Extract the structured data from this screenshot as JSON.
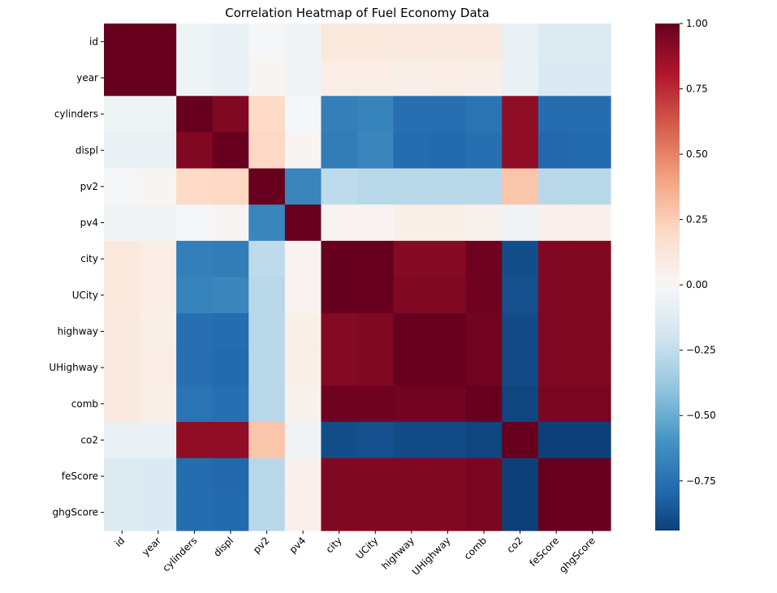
{
  "chart_data": {
    "type": "heatmap",
    "title": "Correlation Heatmap of Fuel Economy Data",
    "x_labels": [
      "id",
      "year",
      "cylinders",
      "displ",
      "pv2",
      "pv4",
      "city",
      "UCity",
      "highway",
      "UHighway",
      "comb",
      "co2",
      "feScore",
      "ghgScore"
    ],
    "y_labels": [
      "id",
      "year",
      "cylinders",
      "displ",
      "pv2",
      "pv4",
      "city",
      "UCity",
      "highway",
      "UHighway",
      "comb",
      "co2",
      "feScore",
      "ghgScore"
    ],
    "values": [
      [
        1.0,
        1.0,
        -0.05,
        -0.07,
        -0.01,
        -0.03,
        0.11,
        0.11,
        0.1,
        0.1,
        0.1,
        -0.08,
        -0.14,
        -0.14
      ],
      [
        1.0,
        1.0,
        -0.05,
        -0.07,
        0.02,
        -0.04,
        0.07,
        0.07,
        0.06,
        0.07,
        0.06,
        -0.07,
        -0.15,
        -0.15
      ],
      [
        -0.05,
        -0.05,
        1.0,
        0.93,
        0.2,
        -0.01,
        -0.69,
        -0.67,
        -0.76,
        -0.76,
        -0.74,
        0.89,
        -0.77,
        -0.77
      ],
      [
        -0.07,
        -0.07,
        0.93,
        1.0,
        0.21,
        0.02,
        -0.7,
        -0.66,
        -0.77,
        -0.78,
        -0.76,
        0.89,
        -0.79,
        -0.78
      ],
      [
        -0.01,
        0.02,
        0.2,
        0.21,
        1.0,
        -0.66,
        -0.26,
        -0.28,
        -0.28,
        -0.28,
        -0.28,
        0.28,
        -0.28,
        -0.28
      ],
      [
        -0.03,
        -0.04,
        -0.01,
        0.02,
        -0.66,
        1.0,
        0.03,
        0.03,
        0.06,
        0.06,
        0.04,
        -0.04,
        0.05,
        0.05
      ],
      [
        0.11,
        0.07,
        -0.69,
        -0.7,
        -0.26,
        0.03,
        1.0,
        1.0,
        0.92,
        0.92,
        0.98,
        -0.89,
        0.93,
        0.93
      ],
      [
        0.11,
        0.07,
        -0.67,
        -0.66,
        -0.28,
        0.03,
        1.0,
        1.0,
        0.93,
        0.93,
        0.98,
        -0.88,
        0.93,
        0.93
      ],
      [
        0.1,
        0.06,
        -0.76,
        -0.77,
        -0.28,
        0.06,
        0.92,
        0.93,
        1.0,
        1.0,
        0.97,
        -0.9,
        0.93,
        0.93
      ],
      [
        0.1,
        0.07,
        -0.76,
        -0.78,
        -0.28,
        0.06,
        0.92,
        0.93,
        1.0,
        1.0,
        0.97,
        -0.9,
        0.93,
        0.93
      ],
      [
        0.1,
        0.06,
        -0.74,
        -0.76,
        -0.28,
        0.04,
        0.98,
        0.98,
        0.97,
        0.97,
        1.0,
        -0.92,
        0.95,
        0.95
      ],
      [
        -0.08,
        -0.07,
        0.89,
        0.89,
        0.28,
        -0.04,
        -0.89,
        -0.88,
        -0.9,
        -0.9,
        -0.92,
        1.0,
        -0.94,
        -0.94
      ],
      [
        -0.14,
        -0.15,
        -0.77,
        -0.79,
        -0.28,
        0.05,
        0.93,
        0.93,
        0.93,
        0.93,
        0.95,
        -0.94,
        1.0,
        1.0
      ],
      [
        -0.14,
        -0.15,
        -0.77,
        -0.78,
        -0.28,
        0.05,
        0.93,
        0.93,
        0.93,
        0.93,
        0.95,
        -0.94,
        1.0,
        1.0
      ]
    ],
    "colormap": "RdBu_r",
    "vmin": -0.94,
    "vmax": 1.0,
    "colorbar_ticks": [
      1.0,
      0.75,
      0.5,
      0.25,
      0.0,
      -0.25,
      -0.5,
      -0.75
    ],
    "colorbar_tick_labels": [
      "1.00",
      "0.75",
      "0.50",
      "0.25",
      "0.00",
      "−0.25",
      "−0.50",
      "−0.75"
    ],
    "colorbar_gradient": [
      "#67001f",
      "#b2182b",
      "#d6604d",
      "#f4a582",
      "#fddbc7",
      "#f7f7f7",
      "#d1e5f0",
      "#92c5de",
      "#4393c3",
      "#2166ac",
      "#053061"
    ],
    "grid": false
  }
}
